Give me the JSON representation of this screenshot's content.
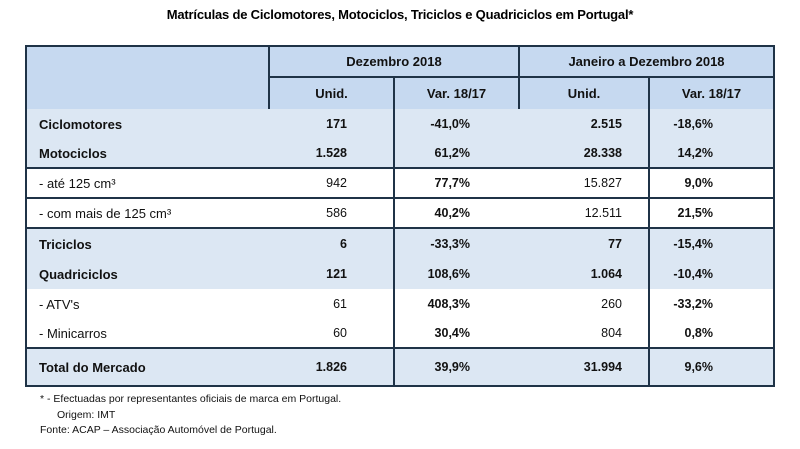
{
  "title": "Matrículas de Ciclomotores, Motociclos, Triciclos e Quadriciclos em Portugal*",
  "table": {
    "group_headers": [
      "Dezembro 2018",
      "Janeiro a Dezembro 2018"
    ],
    "column_headers": [
      "Unid.",
      "Var. 18/17",
      "Unid.",
      "Var. 18/17"
    ],
    "rows": [
      {
        "label": "Ciclomotores",
        "values": [
          "171",
          "-41,0%",
          "2.515",
          "-18,6%"
        ]
      },
      {
        "label": "Motociclos",
        "values": [
          "1.528",
          "61,2%",
          "28.338",
          "14,2%"
        ]
      },
      {
        "label": "- até 125 cm³",
        "values": [
          "942",
          "77,7%",
          "15.827",
          "9,0%"
        ]
      },
      {
        "label": "- com mais de 125 cm³",
        "values": [
          "586",
          "40,2%",
          "12.511",
          "21,5%"
        ]
      },
      {
        "label": "Triciclos",
        "values": [
          "6",
          "-33,3%",
          "77",
          "-15,4%"
        ]
      },
      {
        "label": "Quadriciclos",
        "values": [
          "121",
          "108,6%",
          "1.064",
          "-10,4%"
        ]
      },
      {
        "label": "- ATV's",
        "values": [
          "61",
          "408,3%",
          "260",
          "-33,2%"
        ]
      },
      {
        "label": "- Minicarros",
        "values": [
          "60",
          "30,4%",
          "804",
          "0,8%"
        ]
      },
      {
        "label": "Total do Mercado",
        "values": [
          "1.826",
          "39,9%",
          "31.994",
          "9,6%"
        ]
      }
    ]
  },
  "footnotes": [
    "* - Efectuadas por representantes oficiais de marca em Portugal.",
    "Origem: IMT",
    "Fonte: ACAP – Associação Automóvel de Portugal."
  ],
  "colors": {
    "header_blue": "#c6d9f0",
    "row_blue": "#dce7f3",
    "border_navy": "#1f3347",
    "text": "#111111"
  }
}
